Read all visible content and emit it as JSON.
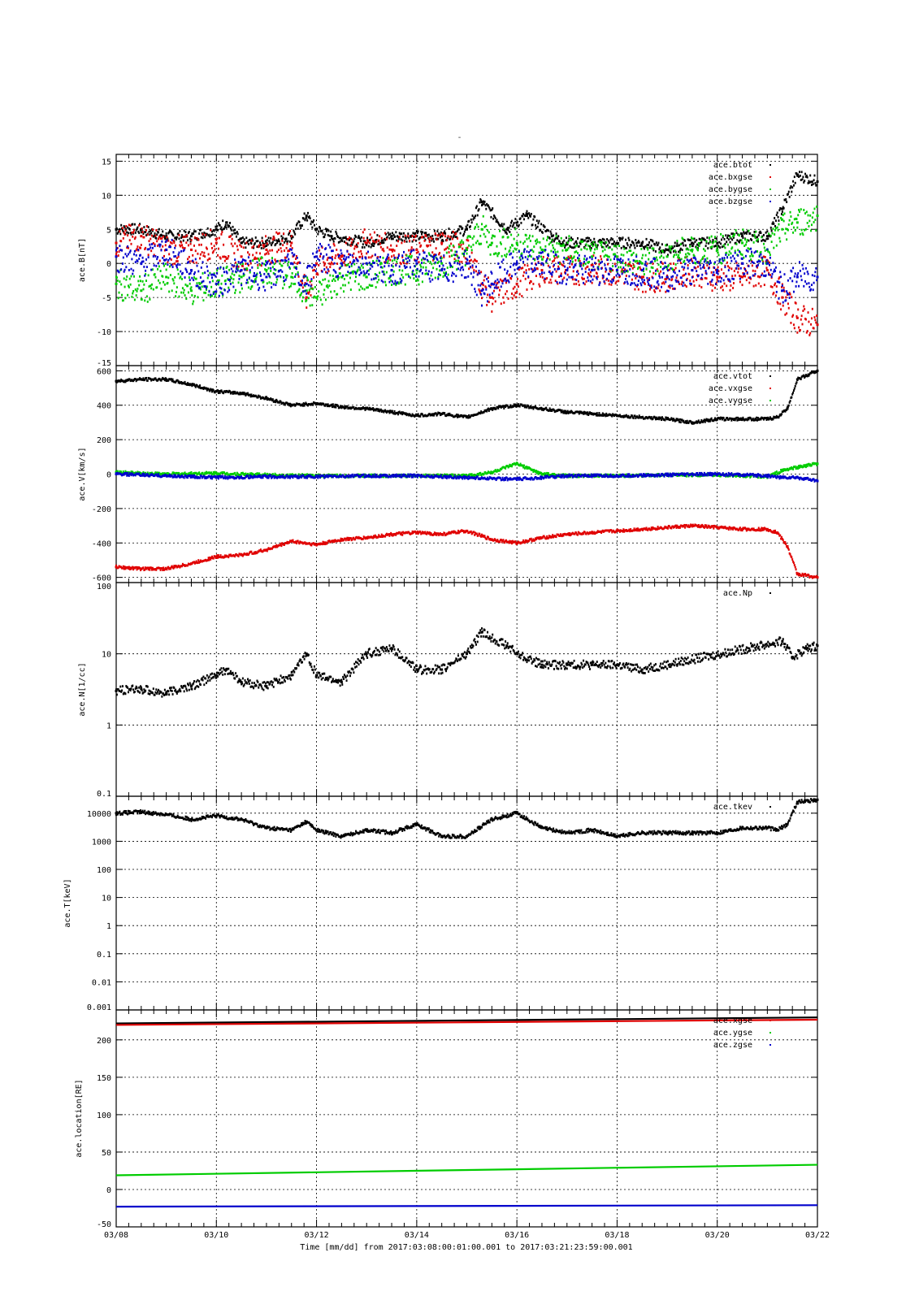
{
  "figure": {
    "title": "-",
    "xlabel": "Time [mm/dd]  from 2017:03:08:00:01:00.001  to  2017:03:21:23:59:00.001"
  },
  "colors": {
    "black": "#000000",
    "red": "#e00000",
    "green": "#00cc00",
    "blue": "#0000cc"
  },
  "chart_data": [
    {
      "type": "scatter",
      "ylabel": "ace.B[nT]",
      "xlim": [
        0,
        14
      ],
      "x_ticks": [
        "03/08",
        "03/10",
        "03/12",
        "03/14",
        "03/16",
        "03/18",
        "03/20",
        "03/22"
      ],
      "ylim": [
        -15,
        16
      ],
      "y_ticks": [
        15,
        10,
        5,
        0,
        -5,
        -10,
        -15
      ],
      "grid": true,
      "legend_position": "top-right",
      "series": [
        {
          "name": "ace.btot",
          "color": "black",
          "x": [
            0,
            0.5,
            1,
            1.5,
            2,
            2.2,
            2.5,
            3,
            3.5,
            3.8,
            4,
            4.3,
            5,
            5.5,
            6,
            6.5,
            7,
            7.3,
            7.8,
            8.2,
            8.7,
            9,
            9.5,
            10,
            10.5,
            11,
            11.5,
            12,
            12.5,
            13,
            13.3,
            13.6,
            14
          ],
          "values": [
            5,
            5,
            4,
            4,
            5,
            6,
            3,
            3,
            4,
            7,
            5,
            4,
            3,
            4,
            4,
            4,
            5,
            9,
            5,
            7,
            4,
            3,
            3,
            3,
            3,
            2,
            3,
            3,
            4,
            4,
            8,
            13,
            12
          ]
        },
        {
          "name": "ace.bxgse",
          "color": "red",
          "x": [
            0,
            0.5,
            1,
            1.5,
            2,
            2.5,
            3,
            3.5,
            3.8,
            4,
            4.5,
            5,
            5.5,
            6,
            6.5,
            7,
            7.3,
            7.5,
            8,
            8.5,
            9,
            9.5,
            10,
            10.5,
            11,
            11.5,
            12,
            12.5,
            13,
            13.3,
            13.6,
            14
          ],
          "values": [
            3,
            4,
            2,
            2,
            3,
            1,
            2,
            3,
            -5,
            0,
            1,
            3,
            2,
            2,
            3,
            2,
            -3,
            -5,
            -3,
            -1,
            -1,
            -1,
            -1,
            -2,
            -2,
            -1,
            -2,
            -2,
            -1,
            -5,
            -8,
            -9
          ]
        },
        {
          "name": "ace.bygse",
          "color": "green",
          "x": [
            0,
            0.5,
            1,
            1.5,
            2,
            2.5,
            3,
            3.5,
            3.8,
            4,
            4.5,
            5,
            5.5,
            6,
            6.5,
            7,
            7.3,
            7.5,
            8,
            8.5,
            9,
            9.5,
            10,
            10.5,
            11,
            11.5,
            12,
            12.5,
            13,
            13.3,
            13.6,
            14
          ],
          "values": [
            -3,
            -4,
            -2,
            -4,
            -3,
            -2,
            -1,
            -2,
            -4,
            -5,
            -2,
            -2,
            -1,
            -1,
            0,
            2,
            5,
            3,
            3,
            2,
            2,
            1,
            1,
            0,
            1,
            2,
            2,
            3,
            2,
            5,
            6,
            7
          ]
        },
        {
          "name": "ace.bzgse",
          "color": "blue",
          "x": [
            0,
            0.5,
            1,
            1.5,
            2,
            2.5,
            3,
            3.5,
            3.8,
            4,
            4.5,
            5,
            5.5,
            6,
            6.5,
            7,
            7.3,
            7.5,
            8,
            8.5,
            9,
            9.5,
            10,
            10.5,
            11,
            11.5,
            12,
            12.5,
            13,
            13.3,
            13.6,
            14
          ],
          "values": [
            1,
            0,
            2,
            -1,
            -3,
            -1,
            -2,
            0,
            -3,
            1,
            0,
            0,
            -1,
            0,
            -1,
            0,
            -4,
            -3,
            0,
            0,
            -1,
            -1,
            -1,
            -1,
            -2,
            -1,
            -1,
            0,
            0,
            -4,
            -2,
            -2
          ]
        }
      ]
    },
    {
      "type": "scatter",
      "ylabel": "ace.V[km/s]",
      "xlim": [
        0,
        14
      ],
      "x_ticks": [
        "03/08",
        "03/10",
        "03/12",
        "03/14",
        "03/16",
        "03/18",
        "03/20",
        "03/22"
      ],
      "ylim": [
        -630,
        630
      ],
      "y_ticks": [
        600,
        400,
        200,
        0,
        -200,
        -400,
        -600
      ],
      "grid": true,
      "legend_position": "top-right",
      "series": [
        {
          "name": "ace.vtot",
          "color": "black",
          "x": [
            0,
            0.5,
            1,
            1.5,
            2,
            2.5,
            3,
            3.5,
            4,
            4.5,
            5,
            5.5,
            6,
            6.5,
            7,
            7.5,
            8,
            8.5,
            9,
            9.5,
            10,
            10.5,
            11,
            11.5,
            12,
            12.5,
            13,
            13.2,
            13.4,
            13.6,
            14
          ],
          "values": [
            540,
            550,
            550,
            520,
            480,
            470,
            440,
            400,
            410,
            390,
            380,
            360,
            340,
            350,
            330,
            380,
            400,
            380,
            360,
            350,
            340,
            330,
            320,
            300,
            320,
            320,
            320,
            330,
            380,
            550,
            600
          ]
        },
        {
          "name": "ace.vxgse",
          "color": "red",
          "x": [
            0,
            0.5,
            1,
            1.5,
            2,
            2.5,
            3,
            3.5,
            4,
            4.5,
            5,
            5.5,
            6,
            6.5,
            7,
            7.5,
            8,
            8.5,
            9,
            9.5,
            10,
            10.5,
            11,
            11.5,
            12,
            12.5,
            13,
            13.2,
            13.4,
            13.6,
            14
          ],
          "values": [
            -540,
            -550,
            -550,
            -520,
            -480,
            -470,
            -440,
            -390,
            -410,
            -380,
            -370,
            -350,
            -340,
            -350,
            -330,
            -380,
            -400,
            -370,
            -350,
            -340,
            -330,
            -320,
            -310,
            -300,
            -310,
            -320,
            -320,
            -340,
            -420,
            -580,
            -600
          ]
        },
        {
          "name": "ace.vygse",
          "color": "green",
          "x": [
            0,
            1,
            2,
            3,
            4,
            5,
            6,
            7,
            7.5,
            8,
            8.5,
            9,
            10,
            11,
            12,
            13,
            13.3,
            13.6,
            14
          ],
          "values": [
            10,
            0,
            5,
            -5,
            -10,
            -10,
            -10,
            -10,
            10,
            60,
            0,
            -10,
            -10,
            -5,
            -5,
            -15,
            20,
            40,
            60
          ]
        },
        {
          "name": "",
          "color": "blue",
          "x": [
            0,
            1,
            2,
            3,
            4,
            5,
            6,
            7,
            8,
            9,
            10,
            11,
            12,
            13,
            13.3,
            13.6,
            14
          ],
          "values": [
            0,
            -10,
            -20,
            -15,
            -15,
            -10,
            -10,
            -20,
            -30,
            -10,
            -10,
            -5,
            0,
            -10,
            -20,
            -20,
            -40
          ]
        }
      ]
    },
    {
      "type": "scatter",
      "ylabel": "ace.N[1/cc]",
      "xlim": [
        0,
        14
      ],
      "x_ticks": [
        "03/08",
        "03/10",
        "03/12",
        "03/14",
        "03/16",
        "03/18",
        "03/20",
        "03/22"
      ],
      "y_scale": "log",
      "ylim": [
        0.1,
        100
      ],
      "y_ticks": [
        100,
        10,
        1,
        0.1
      ],
      "grid": true,
      "legend_position": "top-right",
      "series": [
        {
          "name": "ace.Np",
          "color": "black",
          "x": [
            0,
            0.5,
            1,
            1.5,
            2,
            2.2,
            2.5,
            3,
            3.5,
            3.8,
            4,
            4.5,
            5,
            5.5,
            6,
            6.5,
            7,
            7.3,
            7.8,
            8,
            8.5,
            9,
            9.5,
            10,
            10.5,
            13.3,
            13.5,
            13.8,
            14
          ],
          "values": [
            3,
            3.2,
            2.8,
            3.5,
            5,
            6,
            4,
            3.5,
            5,
            10,
            5,
            4,
            10,
            12,
            6,
            6,
            10,
            20,
            13,
            10,
            7,
            7,
            7,
            7,
            6,
            15,
            9,
            12,
            13
          ]
        }
      ]
    },
    {
      "type": "scatter",
      "ylabel": "ace.T[keV]",
      "xlim": [
        0,
        14
      ],
      "x_ticks": [
        "03/08",
        "03/10",
        "03/12",
        "03/14",
        "03/16",
        "03/18",
        "03/20",
        "03/22"
      ],
      "y_scale": "log",
      "ylim": [
        0.001,
        40000
      ],
      "y_ticks": [
        10000,
        1000,
        100,
        10,
        1,
        0.1,
        0.01,
        0.001
      ],
      "grid": true,
      "legend_position": "top-right",
      "series": [
        {
          "name": "ace.tkev",
          "color": "black",
          "x": [
            0,
            0.5,
            1,
            1.5,
            2,
            2.5,
            3,
            3.5,
            3.8,
            4,
            4.5,
            5,
            5.5,
            6,
            6.5,
            7,
            7.5,
            8,
            8.5,
            9,
            9.5,
            10,
            10.5,
            11,
            11.5,
            12,
            12.5,
            13,
            13.2,
            13.4,
            13.6,
            14
          ],
          "values": [
            10000,
            11000,
            9000,
            6000,
            8000,
            6000,
            3000,
            2500,
            5000,
            2500,
            1500,
            2500,
            2000,
            4000,
            1500,
            1500,
            6000,
            10000,
            3000,
            2000,
            2500,
            1500,
            2000,
            2000,
            2000,
            2000,
            3000,
            3000,
            2500,
            4000,
            25000,
            30000
          ]
        }
      ]
    },
    {
      "type": "line",
      "ylabel": "ace.location[RE]",
      "xlim": [
        0,
        14
      ],
      "x_ticks": [
        "03/08",
        "03/10",
        "03/12",
        "03/14",
        "03/16",
        "03/18",
        "03/20",
        "03/22"
      ],
      "ylim": [
        -50,
        240
      ],
      "y_ticks": [
        200,
        150,
        100,
        50,
        0,
        -50
      ],
      "grid": true,
      "legend_position": "top-right",
      "series": [
        {
          "name": "",
          "color": "black",
          "x": [
            0,
            14
          ],
          "values": [
            222,
            230
          ]
        },
        {
          "name": "ace.xgse",
          "color": "red",
          "x": [
            0,
            14
          ],
          "values": [
            220,
            227
          ]
        },
        {
          "name": "ace.ygse",
          "color": "green",
          "x": [
            0,
            14
          ],
          "values": [
            19,
            33
          ]
        },
        {
          "name": "ace.zgse",
          "color": "blue",
          "x": [
            0,
            14
          ],
          "values": [
            -23,
            -21
          ]
        }
      ]
    }
  ]
}
